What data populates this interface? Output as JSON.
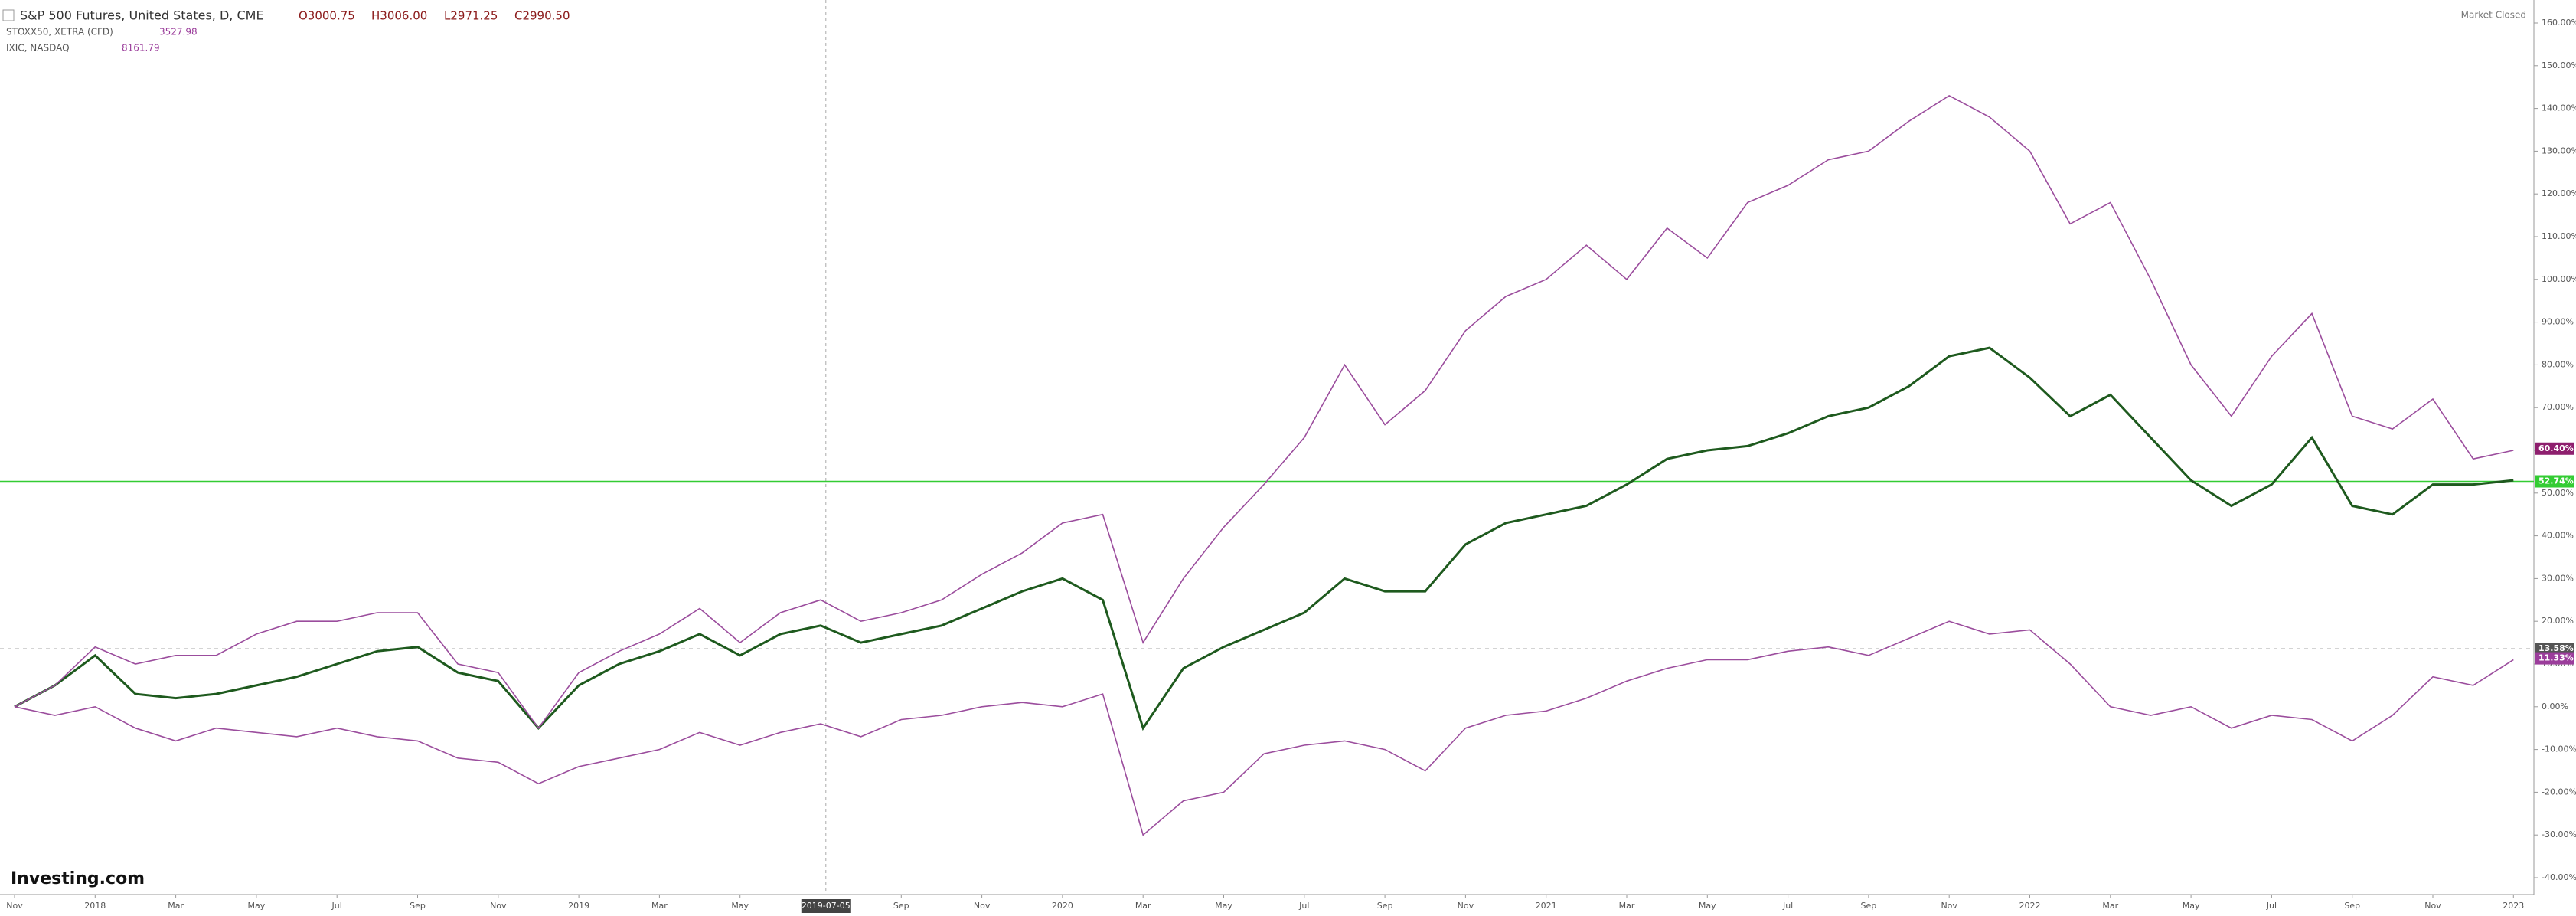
{
  "header": {
    "title": "S&P 500 Futures, United States, D, CME",
    "open": "O3000.75",
    "high": "H3006.00",
    "low": "L2971.25",
    "close": "C2990.50",
    "compare": [
      {
        "name": "STOXX50, XETRA (CFD)",
        "value": "3527.98"
      },
      {
        "name": "IXIC, NASDAQ",
        "value": "8161.79"
      }
    ]
  },
  "market_status": "Market Closed",
  "logo": "Investing.com",
  "chart_data": {
    "type": "line",
    "x": [
      "2017-11",
      "2017-12",
      "2018-01",
      "2018-02",
      "2018-03",
      "2018-04",
      "2018-05",
      "2018-06",
      "2018-07",
      "2018-08",
      "2018-09",
      "2018-10",
      "2018-11",
      "2018-12",
      "2019-01",
      "2019-02",
      "2019-03",
      "2019-04",
      "2019-05",
      "2019-06",
      "2019-07",
      "2019-08",
      "2019-09",
      "2019-10",
      "2019-11",
      "2019-12",
      "2020-01",
      "2020-02",
      "2020-03",
      "2020-04",
      "2020-05",
      "2020-06",
      "2020-07",
      "2020-08",
      "2020-09",
      "2020-10",
      "2020-11",
      "2020-12",
      "2021-01",
      "2021-02",
      "2021-03",
      "2021-04",
      "2021-05",
      "2021-06",
      "2021-07",
      "2021-08",
      "2021-09",
      "2021-10",
      "2021-11",
      "2021-12",
      "2022-01",
      "2022-02",
      "2022-03",
      "2022-04",
      "2022-05",
      "2022-06",
      "2022-07",
      "2022-08",
      "2022-09",
      "2022-10",
      "2022-11",
      "2022-12",
      "2023-01"
    ],
    "series": [
      {
        "name": "S&P 500 Futures",
        "color": "#1e5a1e",
        "values": [
          0,
          5,
          12,
          3,
          2,
          3,
          5,
          7,
          10,
          13,
          14,
          8,
          6,
          -5,
          5,
          10,
          13,
          17,
          12,
          17,
          19,
          15,
          17,
          19,
          23,
          27,
          30,
          25,
          -5,
          9,
          14,
          18,
          22,
          30,
          27,
          27,
          38,
          43,
          45,
          47,
          52,
          58,
          60,
          61,
          64,
          68,
          70,
          75,
          82,
          84,
          77,
          68,
          73,
          63,
          53,
          47,
          52,
          63,
          47,
          45,
          52,
          52,
          53
        ]
      },
      {
        "name": "IXIC",
        "color": "#9b4d9d",
        "values": [
          0,
          5,
          14,
          10,
          12,
          12,
          17,
          20,
          20,
          22,
          22,
          10,
          8,
          -5,
          8,
          13,
          17,
          23,
          15,
          22,
          25,
          20,
          22,
          25,
          31,
          36,
          43,
          45,
          15,
          30,
          42,
          52,
          63,
          80,
          66,
          74,
          88,
          96,
          100,
          108,
          100,
          112,
          105,
          118,
          122,
          128,
          130,
          137,
          143,
          138,
          130,
          113,
          118,
          100,
          80,
          68,
          82,
          92,
          68,
          65,
          72,
          58,
          60
        ]
      },
      {
        "name": "STOXX50",
        "color": "#9b4d9d",
        "values": [
          0,
          -2,
          0,
          -5,
          -8,
          -5,
          -6,
          -7,
          -5,
          -7,
          -8,
          -12,
          -13,
          -18,
          -14,
          -12,
          -10,
          -6,
          -9,
          -6,
          -4,
          -7,
          -3,
          -2,
          0,
          1,
          0,
          3,
          -30,
          -22,
          -20,
          -11,
          -9,
          -8,
          -10,
          -15,
          -5,
          -2,
          -1,
          2,
          6,
          9,
          11,
          11,
          13,
          14,
          12,
          16,
          20,
          17,
          18,
          10,
          0,
          -2,
          0,
          -5,
          -2,
          -3,
          -8,
          -2,
          7,
          5,
          11
        ]
      }
    ],
    "ylim": [
      -40,
      160
    ],
    "yticks": [
      {
        "value": 160,
        "label": "160.00%"
      },
      {
        "value": 150,
        "label": "150.00%"
      },
      {
        "value": 140,
        "label": "140.00%"
      },
      {
        "value": 130,
        "label": "130.00%"
      },
      {
        "value": 120,
        "label": "120.00%"
      },
      {
        "value": 110,
        "label": "110.00%"
      },
      {
        "value": 100,
        "label": "100.00%"
      },
      {
        "value": 90,
        "label": "90.00%"
      },
      {
        "value": 80,
        "label": "80.00%"
      },
      {
        "value": 70,
        "label": "70.00%"
      },
      {
        "value": 60,
        "label": "60.00%"
      },
      {
        "value": 50,
        "label": "50.00%"
      },
      {
        "value": 40,
        "label": "40.00%"
      },
      {
        "value": 30,
        "label": "30.00%"
      },
      {
        "value": 20,
        "label": "20.00%"
      },
      {
        "value": 10,
        "label": "10.00%"
      },
      {
        "value": 0,
        "label": "0.00%"
      },
      {
        "value": -10,
        "label": "-10.00%"
      },
      {
        "value": -20,
        "label": "-20.00%"
      },
      {
        "value": -30,
        "label": "-30.00%"
      },
      {
        "value": -40,
        "label": "-40.00%"
      }
    ],
    "xticks": [
      {
        "value": "2017-11",
        "label": "Nov"
      },
      {
        "value": "2018-01",
        "label": "2018"
      },
      {
        "value": "2018-03",
        "label": "Mar"
      },
      {
        "value": "2018-05",
        "label": "May"
      },
      {
        "value": "2018-07",
        "label": "Jul"
      },
      {
        "value": "2018-09",
        "label": "Sep"
      },
      {
        "value": "2018-11",
        "label": "Nov"
      },
      {
        "value": "2019-01",
        "label": "2019"
      },
      {
        "value": "2019-03",
        "label": "Mar"
      },
      {
        "value": "2019-05",
        "label": "May"
      },
      {
        "value": "2019-09",
        "label": "Sep"
      },
      {
        "value": "2019-11",
        "label": "Nov"
      },
      {
        "value": "2020-01",
        "label": "2020"
      },
      {
        "value": "2020-03",
        "label": "Mar"
      },
      {
        "value": "2020-05",
        "label": "May"
      },
      {
        "value": "2020-07",
        "label": "Jul"
      },
      {
        "value": "2020-09",
        "label": "Sep"
      },
      {
        "value": "2020-11",
        "label": "Nov"
      },
      {
        "value": "2021-01",
        "label": "2021"
      },
      {
        "value": "2021-03",
        "label": "Mar"
      },
      {
        "value": "2021-05",
        "label": "May"
      },
      {
        "value": "2021-07",
        "label": "Jul"
      },
      {
        "value": "2021-09",
        "label": "Sep"
      },
      {
        "value": "2021-11",
        "label": "Nov"
      },
      {
        "value": "2022-01",
        "label": "2022"
      },
      {
        "value": "2022-03",
        "label": "Mar"
      },
      {
        "value": "2022-05",
        "label": "May"
      },
      {
        "value": "2022-07",
        "label": "Jul"
      },
      {
        "value": "2022-09",
        "label": "Sep"
      },
      {
        "value": "2022-11",
        "label": "Nov"
      },
      {
        "value": "2023-01",
        "label": "2023"
      }
    ],
    "crosshair_date": "2019-07-05",
    "grid": false,
    "price_labels": [
      {
        "value": 60.4,
        "label": "60.40%",
        "color": "#8e1f6e"
      },
      {
        "value": 52.74,
        "label": "52.74%",
        "color": "#33cc33"
      },
      {
        "value": 13.58,
        "label": "13.58%",
        "color": "#555555"
      },
      {
        "value": 11.33,
        "label": "11.33%",
        "color": "#9b3d9b"
      }
    ]
  }
}
